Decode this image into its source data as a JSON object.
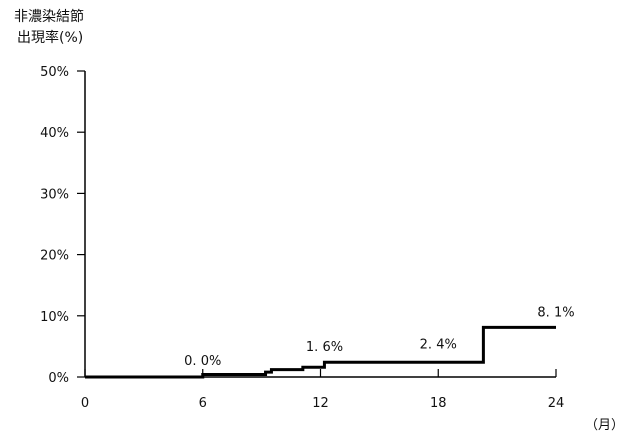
{
  "chart_data": {
    "type": "line",
    "ylabel_lines": [
      "非濃染結節",
      "出現率(%)"
    ],
    "xunit": "（月）",
    "xlim": [
      0,
      24
    ],
    "ylim": [
      0,
      50
    ],
    "xticks": [
      0,
      6,
      12,
      18,
      24
    ],
    "xtick_labels": [
      "0",
      "6",
      "12",
      "18",
      "24"
    ],
    "yticks": [
      0,
      10,
      20,
      30,
      40,
      50
    ],
    "ytick_labels": [
      "0%",
      "10%",
      "20%",
      "30%",
      "40%",
      "50%"
    ],
    "series": [
      {
        "step": true,
        "points": [
          {
            "x": 0,
            "y": 0.0
          },
          {
            "x": 6,
            "y": 0.4
          },
          {
            "x": 9.2,
            "y": 0.8
          },
          {
            "x": 9.5,
            "y": 1.2
          },
          {
            "x": 11.1,
            "y": 1.6
          },
          {
            "x": 12.2,
            "y": 2.4
          },
          {
            "x": 20.3,
            "y": 8.1
          },
          {
            "x": 24,
            "y": 8.1
          }
        ]
      }
    ],
    "annotations": [
      {
        "text": "0. 0%",
        "x": 6,
        "y": 0.0
      },
      {
        "text": "1. 6%",
        "x": 12,
        "y": 1.6
      },
      {
        "text": "2. 4%",
        "x": 18,
        "y": 2.4
      },
      {
        "text": "8. 1%",
        "x": 24,
        "y": 8.1
      }
    ],
    "grid": false,
    "color": "#000000"
  }
}
